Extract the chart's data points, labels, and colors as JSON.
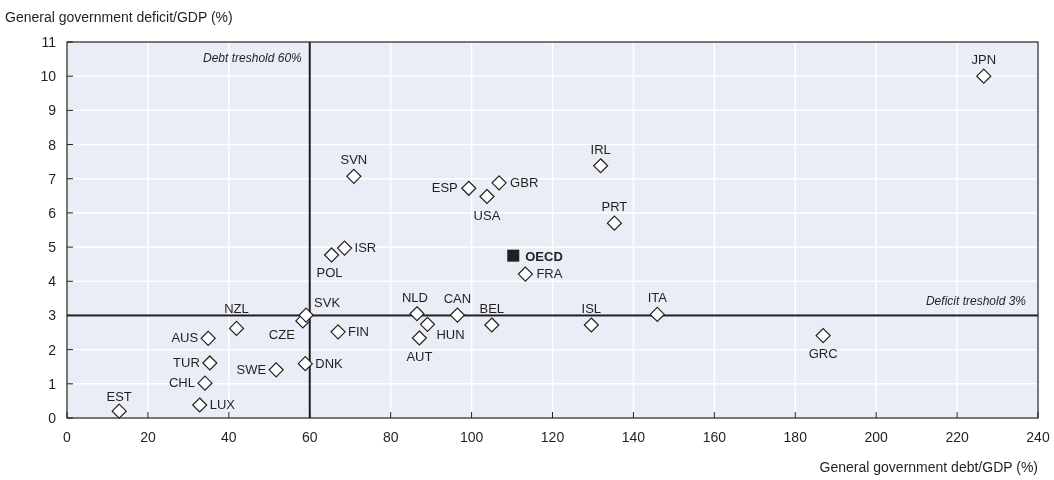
{
  "chart_data": {
    "type": "scatter",
    "xlabel": "General government debt/GDP (%)",
    "ylabel": "General government deficit/GDP (%)",
    "xlim": [
      0,
      240
    ],
    "xticks": [
      0,
      20,
      40,
      60,
      80,
      100,
      120,
      140,
      160,
      180,
      200,
      220,
      240
    ],
    "ylim": [
      0,
      11
    ],
    "yticks": [
      0,
      1,
      2,
      3,
      4,
      5,
      6,
      7,
      8,
      9,
      10,
      11
    ],
    "grid": true,
    "legend": false,
    "series": [
      {
        "color": "#ffffff",
        "marker": "diamond",
        "x": [
          12.9,
          32.8,
          34.1,
          35.3,
          34.9,
          41.9,
          51.7,
          58.9,
          58.3,
          59.1,
          67,
          65.4,
          68.6,
          70.9,
          86.5,
          89.1,
          87.1,
          96.5,
          105,
          99.3,
          103.8,
          106.8,
          113.3,
          129.6,
          131.9,
          135.3,
          145.9,
          186.9,
          226.6
        ],
        "values": [
          0.2,
          0.38,
          1.02,
          1.61,
          2.33,
          2.62,
          1.41,
          1.59,
          2.84,
          3.01,
          2.52,
          4.77,
          4.97,
          7.07,
          3.05,
          2.74,
          2.34,
          3.01,
          2.72,
          6.72,
          6.48,
          6.88,
          4.21,
          2.72,
          7.38,
          5.7,
          3.03,
          2.41,
          10
        ]
      },
      {
        "name": "OECD",
        "color": "#231f20",
        "marker": "square",
        "x": [
          110.3
        ],
        "values": [
          4.75
        ]
      }
    ],
    "ref_lines": [
      {
        "axis": "x",
        "value": 60,
        "label": "Debt treshold 60%",
        "color": "#231f20"
      },
      {
        "axis": "y",
        "value": 3,
        "label": "Deficit treshold 3%",
        "color": "#231f20"
      }
    ],
    "annotations": [
      {
        "text": "EST",
        "x": 12.9,
        "y": 0.2
      },
      {
        "text": "LUX",
        "x": 32.8,
        "y": 0.38
      },
      {
        "text": "CHL",
        "x": 34.1,
        "y": 1.02
      },
      {
        "text": "TUR",
        "x": 35.3,
        "y": 1.61
      },
      {
        "text": "AUS",
        "x": 34.9,
        "y": 2.33
      },
      {
        "text": "NZL",
        "x": 41.9,
        "y": 2.62
      },
      {
        "text": "SWE",
        "x": 51.7,
        "y": 1.41
      },
      {
        "text": "DNK",
        "x": 58.9,
        "y": 1.59
      },
      {
        "text": "CZE",
        "x": 58.3,
        "y": 2.84
      },
      {
        "text": "SVK",
        "x": 59.1,
        "y": 3.01
      },
      {
        "text": "FIN",
        "x": 67,
        "y": 2.52
      },
      {
        "text": "POL",
        "x": 65.4,
        "y": 4.77
      },
      {
        "text": "ISR",
        "x": 68.6,
        "y": 4.97
      },
      {
        "text": "SVN",
        "x": 70.9,
        "y": 7.07
      },
      {
        "text": "NLD",
        "x": 86.5,
        "y": 3.05
      },
      {
        "text": "HUN",
        "x": 89.1,
        "y": 2.74
      },
      {
        "text": "AUT",
        "x": 87.1,
        "y": 2.34
      },
      {
        "text": "CAN",
        "x": 96.5,
        "y": 3.01
      },
      {
        "text": "BEL",
        "x": 105,
        "y": 2.72
      },
      {
        "text": "ESP",
        "x": 99.3,
        "y": 6.72
      },
      {
        "text": "USA",
        "x": 103.8,
        "y": 6.48
      },
      {
        "text": "GBR",
        "x": 106.8,
        "y": 6.88
      },
      {
        "text": "FRA",
        "x": 113.3,
        "y": 4.21
      },
      {
        "text": "ISL",
        "x": 129.6,
        "y": 2.72
      },
      {
        "text": "IRL",
        "x": 131.9,
        "y": 7.38
      },
      {
        "text": "PRT",
        "x": 135.3,
        "y": 5.7
      },
      {
        "text": "ITA",
        "x": 145.9,
        "y": 3.03
      },
      {
        "text": "GRC",
        "x": 186.9,
        "y": 2.41
      },
      {
        "text": "JPN",
        "x": 226.6,
        "y": 10
      }
    ]
  }
}
